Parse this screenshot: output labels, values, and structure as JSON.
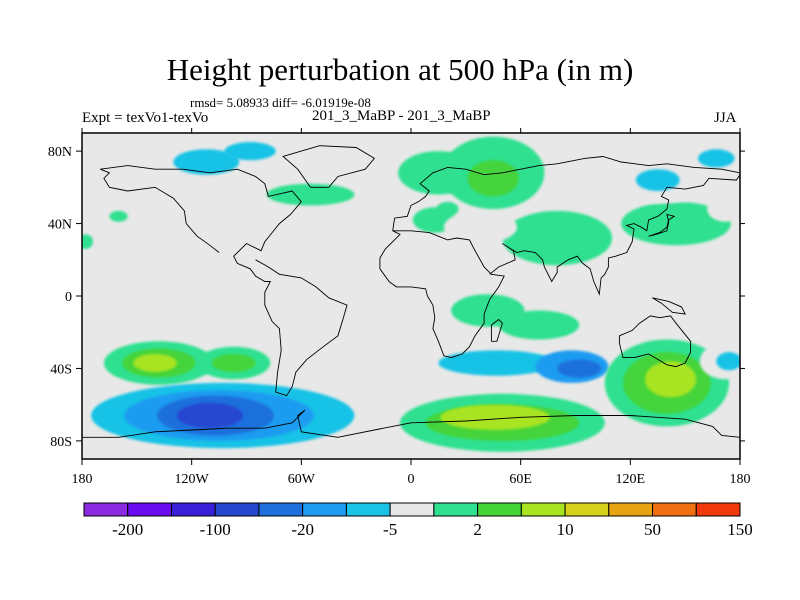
{
  "chart_data": {
    "type": "heatmap",
    "title": "Height perturbation at 500 hPa (in m)",
    "stats_line": "rmsd= 5.08933 diff= -6.01919e-08",
    "left_label": "Expt = texVo1-texVo",
    "center_label": "201_3_MaBP - 201_3_MaBP",
    "right_label": "JJA",
    "xlim": [
      -180,
      180
    ],
    "ylim": [
      -90,
      90
    ],
    "x_ticks": [
      {
        "value": -180,
        "label": "180"
      },
      {
        "value": -120,
        "label": "120W"
      },
      {
        "value": -60,
        "label": "60W"
      },
      {
        "value": 0,
        "label": "0"
      },
      {
        "value": 60,
        "label": "60E"
      },
      {
        "value": 120,
        "label": "120E"
      },
      {
        "value": 180,
        "label": "180"
      }
    ],
    "y_ticks": [
      {
        "value": 80,
        "label": "80N"
      },
      {
        "value": 40,
        "label": "40N"
      },
      {
        "value": 0,
        "label": "0"
      },
      {
        "value": -40,
        "label": "40S"
      },
      {
        "value": -80,
        "label": "80S"
      }
    ],
    "colorbar": {
      "bins": [
        {
          "color": "#8a2be2"
        },
        {
          "color": "#6a0df0"
        },
        {
          "color": "#3a1fd8"
        },
        {
          "color": "#2646d0"
        },
        {
          "color": "#1f6fdc"
        },
        {
          "color": "#1e9cf0"
        },
        {
          "color": "#19c3e6"
        },
        {
          "color": "#e8e8e8"
        },
        {
          "color": "#2fe090"
        },
        {
          "color": "#44d43a"
        },
        {
          "color": "#a8e420"
        },
        {
          "color": "#d6d11a"
        },
        {
          "color": "#e6a414"
        },
        {
          "color": "#ee7012"
        },
        {
          "color": "#f03a0c"
        }
      ],
      "labels": [
        {
          "after_bin": 1,
          "text": "-200"
        },
        {
          "after_bin": 3,
          "text": "-100"
        },
        {
          "after_bin": 5,
          "text": "-20"
        },
        {
          "after_bin": 7,
          "text": "-5"
        },
        {
          "after_bin": 9,
          "text": "2"
        },
        {
          "after_bin": 11,
          "text": "10"
        },
        {
          "after_bin": 13,
          "text": "50"
        },
        {
          "after_bin": 15,
          "text": "150"
        }
      ]
    },
    "anomaly_regions": [
      {
        "lon": -138,
        "lat": -37,
        "rx": 30,
        "ry": 12,
        "bin": 8
      },
      {
        "lon": -138,
        "lat": -37,
        "rx": 20,
        "ry": 8,
        "bin": 9
      },
      {
        "lon": -140,
        "lat": -37,
        "rx": 12,
        "ry": 5,
        "bin": 10
      },
      {
        "lon": -97,
        "lat": -37,
        "rx": 20,
        "ry": 9,
        "bin": 8
      },
      {
        "lon": -97,
        "lat": -37,
        "rx": 12,
        "ry": 5,
        "bin": 9
      },
      {
        "lon": -103,
        "lat": -66,
        "rx": 72,
        "ry": 18,
        "bin": 6
      },
      {
        "lon": -105,
        "lat": -66,
        "rx": 52,
        "ry": 14,
        "bin": 5
      },
      {
        "lon": -107,
        "lat": -66,
        "rx": 32,
        "ry": 11,
        "bin": 4
      },
      {
        "lon": -110,
        "lat": -66,
        "rx": 18,
        "ry": 7,
        "bin": 3
      },
      {
        "lon": -57,
        "lat": -30,
        "rx": 10,
        "ry": 6,
        "bin": 7
      },
      {
        "lon": -30,
        "lat": -36,
        "rx": 30,
        "ry": 11,
        "bin": 7
      },
      {
        "lon": 55,
        "lat": -37,
        "rx": 60,
        "ry": 11,
        "bin": 7
      },
      {
        "lon": 47,
        "lat": -37,
        "rx": 32,
        "ry": 7,
        "bin": 6
      },
      {
        "lon": 88,
        "lat": -39,
        "rx": 20,
        "ry": 9,
        "bin": 5
      },
      {
        "lon": 92,
        "lat": -40,
        "rx": 12,
        "ry": 5,
        "bin": 4
      },
      {
        "lon": 50,
        "lat": -70,
        "rx": 56,
        "ry": 16,
        "bin": 8
      },
      {
        "lon": 50,
        "lat": -70,
        "rx": 42,
        "ry": 10,
        "bin": 9
      },
      {
        "lon": 46,
        "lat": -67,
        "rx": 30,
        "ry": 7,
        "bin": 10
      },
      {
        "lon": 70,
        "lat": -16,
        "rx": 22,
        "ry": 8,
        "bin": 8
      },
      {
        "lon": 140,
        "lat": -48,
        "rx": 34,
        "ry": 24,
        "bin": 8
      },
      {
        "lon": 140,
        "lat": -48,
        "rx": 24,
        "ry": 17,
        "bin": 9
      },
      {
        "lon": 142,
        "lat": -46,
        "rx": 14,
        "ry": 10,
        "bin": 10
      },
      {
        "lon": 172,
        "lat": -36,
        "rx": 14,
        "ry": 10,
        "bin": 7
      },
      {
        "lon": 174,
        "lat": -36,
        "rx": 7,
        "ry": 5,
        "bin": 6
      },
      {
        "lon": 165,
        "lat": -84,
        "rx": 20,
        "ry": 5,
        "bin": 7
      },
      {
        "lon": -72,
        "lat": 78,
        "rx": 44,
        "ry": 9,
        "bin": 7
      },
      {
        "lon": -112,
        "lat": 74,
        "rx": 18,
        "ry": 7,
        "bin": 6
      },
      {
        "lon": -88,
        "lat": 80,
        "rx": 14,
        "ry": 5,
        "bin": 6
      },
      {
        "lon": -55,
        "lat": 56,
        "rx": 24,
        "ry": 6,
        "bin": 8
      },
      {
        "lon": -168,
        "lat": 52,
        "rx": 14,
        "ry": 7,
        "bin": 7
      },
      {
        "lon": -160,
        "lat": 44,
        "rx": 5,
        "ry": 3,
        "bin": 8
      },
      {
        "lon": -178,
        "lat": 30,
        "rx": 4,
        "ry": 4,
        "bin": 8
      },
      {
        "lon": -30,
        "lat": 30,
        "rx": 24,
        "ry": 7,
        "bin": 7
      },
      {
        "lon": -80,
        "lat": 16,
        "rx": 22,
        "ry": 6,
        "bin": 7
      },
      {
        "lon": -5,
        "lat": 23,
        "rx": 10,
        "ry": 5,
        "bin": 7
      },
      {
        "lon": 15,
        "lat": 68,
        "rx": 22,
        "ry": 12,
        "bin": 8
      },
      {
        "lon": 45,
        "lat": 68,
        "rx": 28,
        "ry": 20,
        "bin": 8
      },
      {
        "lon": 45,
        "lat": 65,
        "rx": 14,
        "ry": 10,
        "bin": 9
      },
      {
        "lon": 13,
        "lat": 42,
        "rx": 12,
        "ry": 7,
        "bin": 8
      },
      {
        "lon": 20,
        "lat": 48,
        "rx": 6,
        "ry": 4,
        "bin": 8
      },
      {
        "lon": 80,
        "lat": 32,
        "rx": 30,
        "ry": 15,
        "bin": 8
      },
      {
        "lon": 38,
        "lat": 38,
        "rx": 20,
        "ry": 9,
        "bin": 7
      },
      {
        "lon": 42,
        "lat": -8,
        "rx": 20,
        "ry": 9,
        "bin": 8
      },
      {
        "lon": 112,
        "lat": 18,
        "rx": 10,
        "ry": 5,
        "bin": 7
      },
      {
        "lon": 145,
        "lat": 40,
        "rx": 30,
        "ry": 12,
        "bin": 8
      },
      {
        "lon": 135,
        "lat": 62,
        "rx": 30,
        "ry": 11,
        "bin": 7
      },
      {
        "lon": 135,
        "lat": 64,
        "rx": 12,
        "ry": 6,
        "bin": 6
      },
      {
        "lon": 165,
        "lat": 72,
        "rx": 18,
        "ry": 9,
        "bin": 7
      },
      {
        "lon": 167,
        "lat": 76,
        "rx": 10,
        "ry": 5,
        "bin": 6
      },
      {
        "lon": 172,
        "lat": 48,
        "rx": 10,
        "ry": 7,
        "bin": 7
      }
    ],
    "coastlines": [
      [
        [
          -170,
          70
        ],
        [
          -155,
          72
        ],
        [
          -140,
          70
        ],
        [
          -125,
          70
        ],
        [
          -110,
          68
        ],
        [
          -95,
          70
        ],
        [
          -85,
          66
        ],
        [
          -80,
          62
        ],
        [
          -78,
          55
        ],
        [
          -65,
          58
        ],
        [
          -60,
          52
        ],
        [
          -66,
          45
        ],
        [
          -72,
          40
        ],
        [
          -76,
          35
        ],
        [
          -80,
          30
        ],
        [
          -82,
          25
        ],
        [
          -90,
          29
        ],
        [
          -97,
          22
        ],
        [
          -95,
          18
        ],
        [
          -88,
          15
        ],
        [
          -85,
          11
        ],
        [
          -80,
          8
        ],
        [
          -77,
          8
        ],
        [
          -80,
          2
        ],
        [
          -80,
          -5
        ],
        [
          -76,
          -14
        ],
        [
          -72,
          -18
        ],
        [
          -71,
          -30
        ],
        [
          -73,
          -42
        ],
        [
          -74,
          -53
        ],
        [
          -68,
          -55
        ],
        [
          -65,
          -50
        ],
        [
          -63,
          -42
        ],
        [
          -57,
          -35
        ],
        [
          -48,
          -28
        ],
        [
          -40,
          -22
        ],
        [
          -37,
          -12
        ],
        [
          -35,
          -5
        ],
        [
          -45,
          -1
        ],
        [
          -52,
          5
        ],
        [
          -60,
          10
        ],
        [
          -72,
          12
        ],
        [
          -78,
          16
        ],
        [
          -85,
          20
        ]
      ],
      [
        [
          -105,
          24
        ],
        [
          -110,
          28
        ],
        [
          -117,
          33
        ],
        [
          -123,
          40
        ],
        [
          -124,
          47
        ],
        [
          -130,
          54
        ],
        [
          -140,
          60
        ],
        [
          -155,
          58
        ],
        [
          -165,
          60
        ],
        [
          -168,
          65
        ],
        [
          -165,
          68
        ],
        [
          -170,
          70
        ]
      ],
      [
        [
          -55,
          60
        ],
        [
          -45,
          60
        ],
        [
          -40,
          66
        ],
        [
          -25,
          70
        ],
        [
          -20,
          76
        ],
        [
          -30,
          82
        ],
        [
          -50,
          83
        ],
        [
          -60,
          80
        ],
        [
          -70,
          77
        ],
        [
          -62,
          70
        ],
        [
          -55,
          60
        ]
      ],
      [
        [
          -10,
          36
        ],
        [
          -9,
          43
        ],
        [
          -2,
          44
        ],
        [
          0,
          50
        ],
        [
          4,
          52
        ],
        [
          8,
          55
        ],
        [
          10,
          58
        ],
        [
          5,
          62
        ],
        [
          12,
          68
        ],
        [
          20,
          71
        ],
        [
          30,
          70
        ],
        [
          40,
          67
        ],
        [
          50,
          68
        ],
        [
          60,
          70
        ],
        [
          70,
          72
        ],
        [
          80,
          73
        ],
        [
          95,
          76
        ],
        [
          105,
          77
        ],
        [
          115,
          74
        ],
        [
          130,
          72
        ],
        [
          140,
          73
        ],
        [
          155,
          71
        ],
        [
          170,
          70
        ],
        [
          180,
          68
        ]
      ],
      [
        [
          -10,
          36
        ],
        [
          -6,
          34
        ],
        [
          -10,
          30
        ],
        [
          -14,
          26
        ],
        [
          -17,
          21
        ],
        [
          -17,
          15
        ],
        [
          -12,
          8
        ],
        [
          -8,
          5
        ],
        [
          0,
          5
        ],
        [
          8,
          4
        ],
        [
          9,
          0
        ],
        [
          12,
          -5
        ],
        [
          13,
          -12
        ],
        [
          12,
          -18
        ],
        [
          15,
          -25
        ],
        [
          18,
          -33
        ],
        [
          22,
          -34
        ],
        [
          28,
          -32
        ],
        [
          32,
          -28
        ],
        [
          35,
          -22
        ],
        [
          40,
          -15
        ],
        [
          40,
          -10
        ],
        [
          43,
          -2
        ],
        [
          48,
          5
        ],
        [
          51,
          11
        ],
        [
          44,
          12
        ],
        [
          40,
          16
        ],
        [
          34,
          27
        ],
        [
          32,
          31
        ],
        [
          25,
          32
        ],
        [
          20,
          31
        ],
        [
          10,
          35
        ],
        [
          0,
          36
        ],
        [
          -10,
          36
        ]
      ],
      [
        [
          43,
          12
        ],
        [
          48,
          16
        ],
        [
          57,
          20
        ],
        [
          56,
          25
        ],
        [
          50,
          29
        ],
        [
          53,
          27
        ],
        [
          58,
          24
        ],
        [
          62,
          25
        ],
        [
          68,
          24
        ],
        [
          72,
          20
        ],
        [
          73,
          16
        ],
        [
          77,
          8
        ],
        [
          80,
          13
        ],
        [
          80,
          16
        ],
        [
          86,
          20
        ],
        [
          91,
          22
        ],
        [
          94,
          18
        ],
        [
          98,
          15
        ],
        [
          100,
          8
        ],
        [
          103,
          1
        ],
        [
          104,
          10
        ],
        [
          106,
          12
        ],
        [
          108,
          16
        ],
        [
          108,
          21
        ],
        [
          112,
          22
        ],
        [
          118,
          24
        ],
        [
          121,
          30
        ],
        [
          122,
          37
        ],
        [
          118,
          39
        ],
        [
          122,
          40
        ],
        [
          126,
          38
        ],
        [
          129,
          36
        ],
        [
          130,
          42
        ],
        [
          135,
          44
        ],
        [
          140,
          48
        ],
        [
          141,
          53
        ],
        [
          137,
          55
        ],
        [
          140,
          60
        ],
        [
          150,
          59
        ],
        [
          160,
          61
        ],
        [
          163,
          65
        ],
        [
          178,
          64
        ],
        [
          180,
          67
        ]
      ],
      [
        [
          114,
          -22
        ],
        [
          114,
          -26
        ],
        [
          116,
          -34
        ],
        [
          122,
          -34
        ],
        [
          130,
          -32
        ],
        [
          135,
          -35
        ],
        [
          140,
          -38
        ],
        [
          145,
          -39
        ],
        [
          150,
          -37
        ],
        [
          153,
          -31
        ],
        [
          153,
          -25
        ],
        [
          145,
          -15
        ],
        [
          142,
          -11
        ],
        [
          136,
          -12
        ],
        [
          131,
          -11
        ],
        [
          125,
          -15
        ],
        [
          121,
          -19
        ],
        [
          114,
          -22
        ]
      ],
      [
        [
          44,
          -25
        ],
        [
          47,
          -25
        ],
        [
          50,
          -15
        ],
        [
          48,
          -13
        ],
        [
          44,
          -16
        ],
        [
          44,
          -25
        ]
      ],
      [
        [
          -180,
          -78
        ],
        [
          -160,
          -78
        ],
        [
          -140,
          -75
        ],
        [
          -120,
          -74
        ],
        [
          -100,
          -73
        ],
        [
          -80,
          -73
        ],
        [
          -65,
          -70
        ],
        [
          -58,
          -63
        ],
        [
          -62,
          -66
        ],
        [
          -60,
          -75
        ],
        [
          -40,
          -78
        ],
        [
          -20,
          -74
        ],
        [
          0,
          -70
        ],
        [
          30,
          -69
        ],
        [
          60,
          -67
        ],
        [
          90,
          -66
        ],
        [
          120,
          -66
        ],
        [
          150,
          -68
        ],
        [
          165,
          -72
        ],
        [
          170,
          -77
        ],
        [
          180,
          -78
        ]
      ],
      [
        [
          141,
          -3
        ],
        [
          148,
          -6
        ],
        [
          150,
          -10
        ],
        [
          143,
          -9
        ],
        [
          137,
          -4
        ],
        [
          132,
          -1
        ],
        [
          141,
          -3
        ]
      ],
      [
        [
          130,
          33
        ],
        [
          134,
          34
        ],
        [
          140,
          36
        ],
        [
          141,
          41
        ],
        [
          140,
          45
        ],
        [
          144,
          44
        ],
        [
          141,
          42
        ],
        [
          140,
          38
        ],
        [
          136,
          35
        ],
        [
          130,
          33
        ]
      ]
    ]
  }
}
